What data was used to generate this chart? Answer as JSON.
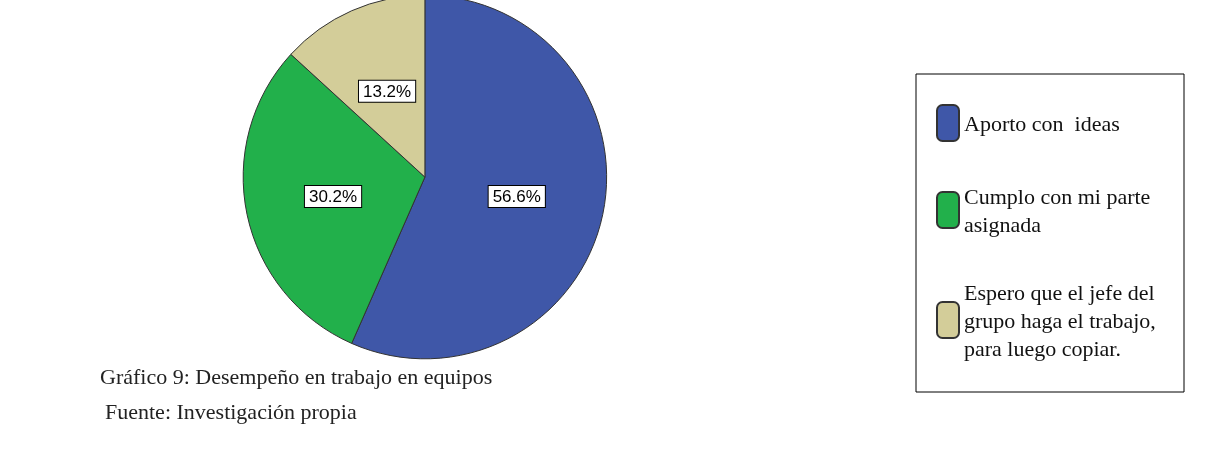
{
  "chart_data": {
    "type": "pie",
    "title": "Gráfico 9: Desempeño en trabajo en equipos",
    "annotations": [
      "Fuente: Investigación propia"
    ],
    "categories": [
      "Aporto con  ideas",
      "Cumplo con mi parte asignada",
      "Espero que el jefe del grupo haga el trabajo, para luego copiar."
    ],
    "values": [
      56.6,
      30.2,
      13.2
    ],
    "colors": [
      "#3f57a8",
      "#22b04b",
      "#d3cd99"
    ],
    "value_labels": [
      "56.6%",
      "30.2%",
      "13.2%"
    ],
    "legend": "right"
  }
}
